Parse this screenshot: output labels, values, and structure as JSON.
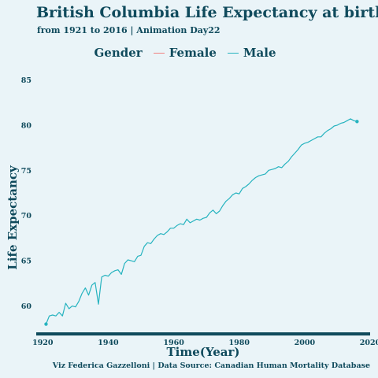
{
  "chart_data": {
    "type": "line",
    "title": "British Columbia Life Expectancy at birth",
    "subtitle": "from 1921 to 2016 | Animation Day22",
    "caption": "Viz Federica Gazzelloni | Data Source: Canadian Human Mortality Database",
    "xlabel": "Time(Year)",
    "ylabel": "Life Expectancy",
    "legend": {
      "title": "Gender",
      "position": "top",
      "entries": [
        {
          "label": "Female",
          "color": "#f08080"
        },
        {
          "label": "Male",
          "color": "#26b3bf"
        }
      ]
    },
    "xlim": [
      1918,
      2020
    ],
    "ylim": [
      57,
      86
    ],
    "xticks": [
      1920,
      1940,
      1960,
      1980,
      2000,
      2020
    ],
    "yticks": [
      60,
      65,
      70,
      75,
      80,
      85
    ],
    "grid": false,
    "series": [
      {
        "name": "Male",
        "color": "#26b3bf",
        "end_points": [
          1921,
          2016
        ],
        "x": [
          1921,
          1922,
          1923,
          1924,
          1925,
          1926,
          1927,
          1928,
          1929,
          1930,
          1931,
          1932,
          1933,
          1934,
          1935,
          1936,
          1937,
          1938,
          1939,
          1940,
          1941,
          1942,
          1943,
          1944,
          1945,
          1946,
          1947,
          1948,
          1949,
          1950,
          1951,
          1952,
          1953,
          1954,
          1955,
          1956,
          1957,
          1958,
          1959,
          1960,
          1961,
          1962,
          1963,
          1964,
          1965,
          1966,
          1967,
          1968,
          1969,
          1970,
          1971,
          1972,
          1973,
          1974,
          1975,
          1976,
          1977,
          1978,
          1979,
          1980,
          1981,
          1982,
          1983,
          1984,
          1985,
          1986,
          1987,
          1988,
          1989,
          1990,
          1991,
          1992,
          1993,
          1994,
          1995,
          1996,
          1997,
          1998,
          1999,
          2000,
          2001,
          2002,
          2003,
          2004,
          2005,
          2006,
          2007,
          2008,
          2009,
          2010,
          2011,
          2012,
          2013,
          2014,
          2015,
          2016
        ],
        "y": [
          58.0,
          58.9,
          59.0,
          58.9,
          59.3,
          58.9,
          60.3,
          59.7,
          60.0,
          59.9,
          60.5,
          61.4,
          62.0,
          61.2,
          62.3,
          62.6,
          60.2,
          63.2,
          63.4,
          63.3,
          63.7,
          63.9,
          64.0,
          63.5,
          64.7,
          65.1,
          65.0,
          64.9,
          65.5,
          65.6,
          66.6,
          67.0,
          66.9,
          67.4,
          67.8,
          68.0,
          67.9,
          68.2,
          68.6,
          68.6,
          68.9,
          69.1,
          69.0,
          69.6,
          69.2,
          69.4,
          69.6,
          69.5,
          69.7,
          69.8,
          70.3,
          70.6,
          70.2,
          70.5,
          71.1,
          71.6,
          71.9,
          72.3,
          72.5,
          72.4,
          73.0,
          73.2,
          73.5,
          73.9,
          74.2,
          74.4,
          74.5,
          74.6,
          75.0,
          75.1,
          75.2,
          75.4,
          75.3,
          75.7,
          76.0,
          76.5,
          76.9,
          77.3,
          77.8,
          78.0,
          78.1,
          78.3,
          78.5,
          78.7,
          78.7,
          79.1,
          79.4,
          79.6,
          79.9,
          80.0,
          80.2,
          80.3,
          80.5,
          80.7,
          80.5,
          80.4
        ]
      }
    ]
  }
}
